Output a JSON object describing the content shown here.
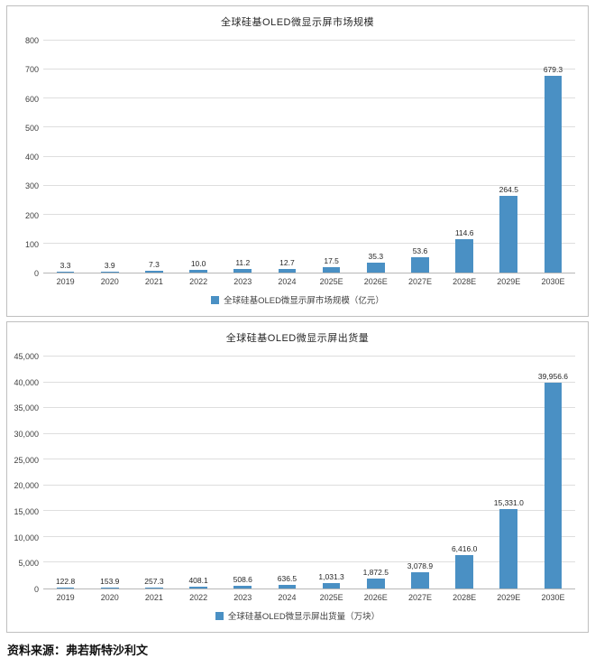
{
  "colors": {
    "bar": "#4a90c4"
  },
  "source_note": "资料来源：弗若斯特沙利文",
  "chart_data": [
    {
      "type": "bar",
      "title": "全球硅基OLED微显示屏市场规模",
      "categories": [
        "2019",
        "2020",
        "2021",
        "2022",
        "2023",
        "2024",
        "2025E",
        "2026E",
        "2027E",
        "2028E",
        "2029E",
        "2030E"
      ],
      "values": [
        3.3,
        3.9,
        7.3,
        10.0,
        11.2,
        12.7,
        17.5,
        35.3,
        53.6,
        114.6,
        264.5,
        679.3
      ],
      "labels": [
        "3.3",
        "3.9",
        "7.3",
        "10.0",
        "11.2",
        "12.7",
        "17.5",
        "35.3",
        "53.6",
        "114.6",
        "264.5",
        "679.3"
      ],
      "legend": "全球硅基OLED微显示屏市场规模（亿元）",
      "xlabel": "",
      "ylabel": "",
      "ylim": [
        0,
        800
      ],
      "ytick_step": 100,
      "ytick_format": "plain",
      "grid": true,
      "legend_position": "bottom"
    },
    {
      "type": "bar",
      "title": "全球硅基OLED微显示屏出货量",
      "categories": [
        "2019",
        "2020",
        "2021",
        "2022",
        "2023",
        "2024",
        "2025E",
        "2026E",
        "2027E",
        "2028E",
        "2029E",
        "2030E"
      ],
      "values": [
        122.8,
        153.9,
        257.3,
        408.1,
        508.6,
        636.5,
        1031.3,
        1872.5,
        3078.9,
        6416.0,
        15331.0,
        39956.6
      ],
      "labels": [
        "122.8",
        "153.9",
        "257.3",
        "408.1",
        "508.6",
        "636.5",
        "1,031.3",
        "1,872.5",
        "3,078.9",
        "6,416.0",
        "15,331.0",
        "39,956.6"
      ],
      "legend": "全球硅基OLED微显示屏出货量（万块）",
      "xlabel": "",
      "ylabel": "",
      "ylim": [
        0,
        45000
      ],
      "ytick_step": 5000,
      "ytick_format": "comma",
      "grid": true,
      "legend_position": "bottom"
    }
  ]
}
